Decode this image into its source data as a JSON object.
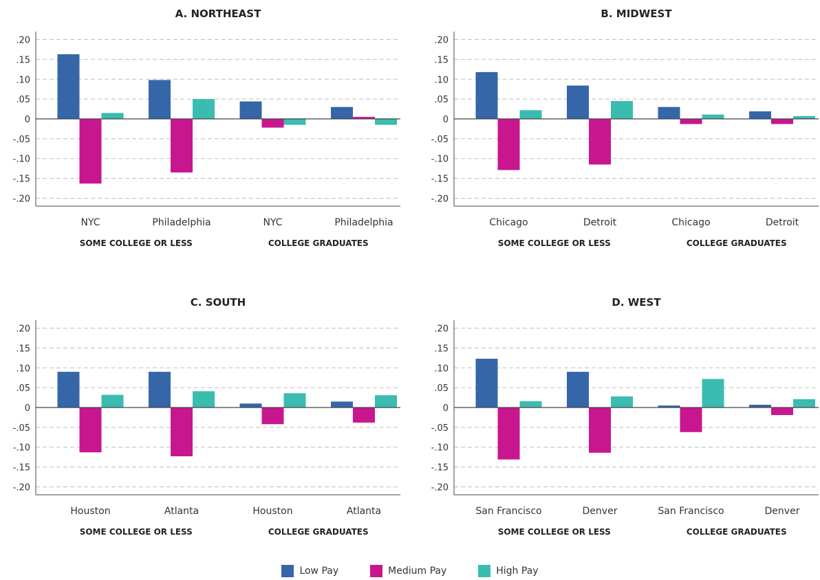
{
  "colors": {
    "low": "#3566a8",
    "medium": "#c8178e",
    "high": "#3bbcb0",
    "grid": "#bfbfbf",
    "axis": "#444444"
  },
  "legend": [
    {
      "key": "low",
      "label": "Low Pay",
      "color": "#3566a8"
    },
    {
      "key": "medium",
      "label": "Medium Pay",
      "color": "#c8178e"
    },
    {
      "key": "high",
      "label": "High Pay",
      "color": "#3bbcb0"
    }
  ],
  "chart_data": [
    {
      "type": "bar",
      "title": "A. NORTHEAST",
      "ylim": [
        -0.22,
        0.22
      ],
      "yticks": [
        ".20",
        ".15",
        ".10",
        ".05",
        "0",
        "-.05",
        "-.10",
        "-.15",
        "-.20"
      ],
      "grid": true,
      "categories": [
        "NYC",
        "Philadelphia",
        "NYC",
        "Philadelphia"
      ],
      "groups": [
        "SOME COLLEGE OR LESS",
        "COLLEGE GRADUATES"
      ],
      "series": [
        {
          "name": "Low Pay",
          "values": [
            0.163,
            0.098,
            0.044,
            0.03
          ]
        },
        {
          "name": "Medium Pay",
          "values": [
            -0.163,
            -0.135,
            -0.022,
            0.005
          ]
        },
        {
          "name": "High Pay",
          "values": [
            0.015,
            0.05,
            -0.015,
            -0.015
          ]
        }
      ]
    },
    {
      "type": "bar",
      "title": "B. MIDWEST",
      "ylim": [
        -0.22,
        0.22
      ],
      "yticks": [
        ".20",
        ".15",
        ".10",
        ".05",
        "0",
        "-.05",
        "-.10",
        "-.15",
        "-.20"
      ],
      "grid": true,
      "categories": [
        "Chicago",
        "Detroit",
        "Chicago",
        "Detroit"
      ],
      "groups": [
        "SOME COLLEGE OR LESS",
        "COLLEGE GRADUATES"
      ],
      "series": [
        {
          "name": "Low Pay",
          "values": [
            0.118,
            0.084,
            0.03,
            0.019
          ]
        },
        {
          "name": "Medium Pay",
          "values": [
            -0.129,
            -0.115,
            -0.013,
            -0.013
          ]
        },
        {
          "name": "High Pay",
          "values": [
            0.022,
            0.045,
            0.011,
            0.007
          ]
        }
      ]
    },
    {
      "type": "bar",
      "title": "C. SOUTH",
      "ylim": [
        -0.22,
        0.22
      ],
      "yticks": [
        ".20",
        ".15",
        ".10",
        ".05",
        "0",
        "-.05",
        "-.10",
        "-.15",
        "-.20"
      ],
      "grid": true,
      "categories": [
        "Houston",
        "Atlanta",
        "Houston",
        "Atlanta"
      ],
      "groups": [
        "SOME COLLEGE OR LESS",
        "COLLEGE GRADUATES"
      ],
      "series": [
        {
          "name": "Low Pay",
          "values": [
            0.09,
            0.09,
            0.01,
            0.015
          ]
        },
        {
          "name": "Medium Pay",
          "values": [
            -0.113,
            -0.123,
            -0.042,
            -0.038
          ]
        },
        {
          "name": "High Pay",
          "values": [
            0.032,
            0.041,
            0.036,
            0.031
          ]
        }
      ]
    },
    {
      "type": "bar",
      "title": "D. WEST",
      "ylim": [
        -0.22,
        0.22
      ],
      "yticks": [
        ".20",
        ".15",
        ".10",
        ".05",
        "0",
        "-.05",
        "-.10",
        "-.15",
        "-.20"
      ],
      "grid": true,
      "categories": [
        "San Francisco",
        "Denver",
        "San Francisco",
        "Denver"
      ],
      "groups": [
        "SOME COLLEGE OR LESS",
        "COLLEGE GRADUATES"
      ],
      "series": [
        {
          "name": "Low Pay",
          "values": [
            0.123,
            0.09,
            0.005,
            0.007
          ]
        },
        {
          "name": "Medium Pay",
          "values": [
            -0.131,
            -0.114,
            -0.062,
            -0.019
          ]
        },
        {
          "name": "High Pay",
          "values": [
            0.016,
            0.028,
            0.072,
            0.021
          ]
        }
      ]
    }
  ]
}
